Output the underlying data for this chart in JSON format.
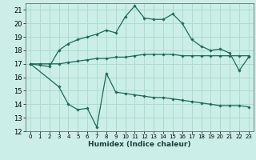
{
  "background_color": "#cceee8",
  "grid_color": "#aaddcc",
  "line_color": "#1a6b5a",
  "x_min": 0,
  "x_max": 23,
  "y_min": 12,
  "y_max": 21,
  "xlabel": "Humidex (Indice chaleur)",
  "x_ticks": [
    0,
    1,
    2,
    3,
    4,
    5,
    6,
    7,
    8,
    9,
    10,
    11,
    12,
    13,
    14,
    15,
    16,
    17,
    18,
    19,
    20,
    21,
    22,
    23
  ],
  "y_ticks": [
    12,
    13,
    14,
    15,
    16,
    17,
    18,
    19,
    20,
    21
  ],
  "series": [
    {
      "x": [
        0,
        1,
        2,
        3,
        4,
        5,
        6,
        7,
        8,
        9,
        10,
        11,
        12,
        13,
        14,
        15,
        16,
        17,
        18,
        19,
        20,
        21,
        22,
        23
      ],
      "y": [
        17.0,
        17.0,
        17.0,
        17.0,
        17.1,
        17.2,
        17.3,
        17.4,
        17.4,
        17.5,
        17.5,
        17.6,
        17.7,
        17.7,
        17.7,
        17.7,
        17.6,
        17.6,
        17.6,
        17.6,
        17.6,
        17.6,
        17.6,
        17.6
      ]
    },
    {
      "x": [
        0,
        1,
        2,
        3,
        4,
        5,
        6,
        7,
        8,
        9,
        10,
        11,
        12,
        13,
        14,
        15,
        16,
        17,
        18,
        19,
        20,
        21,
        22,
        23
      ],
      "y": [
        17.0,
        16.9,
        16.8,
        18.0,
        18.5,
        18.8,
        19.0,
        19.2,
        19.5,
        19.3,
        20.5,
        21.3,
        20.4,
        20.3,
        20.3,
        20.7,
        20.0,
        18.8,
        18.3,
        18.0,
        18.1,
        17.8,
        16.5,
        17.5
      ]
    },
    {
      "x": [
        0,
        3,
        4,
        5,
        6,
        7,
        8,
        9,
        10,
        11,
        12,
        13,
        14,
        15,
        16,
        17,
        18,
        19,
        20,
        21,
        22,
        23
      ],
      "y": [
        17.0,
        15.3,
        14.0,
        13.6,
        13.7,
        12.3,
        16.3,
        14.9,
        14.8,
        14.7,
        14.6,
        14.5,
        14.5,
        14.4,
        14.3,
        14.2,
        14.1,
        14.0,
        13.9,
        13.9,
        13.9,
        13.8
      ]
    }
  ]
}
